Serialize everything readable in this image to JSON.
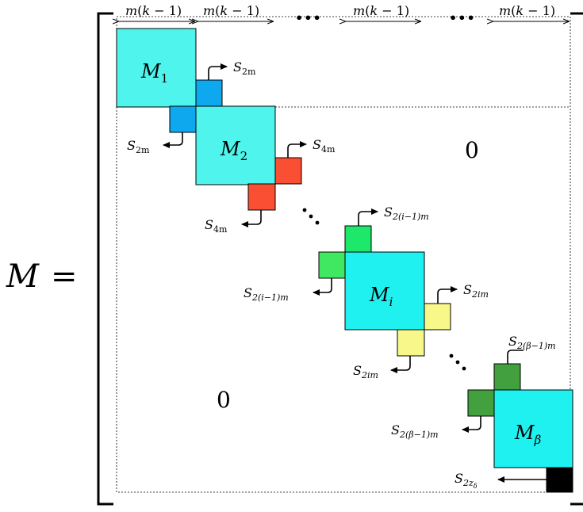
{
  "equation": {
    "lhs": "M",
    "equals": "="
  },
  "column_widths": [
    {
      "m": "m",
      "k": "k",
      "one": "1"
    },
    {
      "m": "m",
      "k": "k",
      "one": "1"
    },
    {
      "m": "m",
      "k": "k",
      "one": "1"
    },
    {
      "m": "m",
      "k": "k",
      "one": "1"
    }
  ],
  "ellipsis": "•••",
  "zeros": {
    "upper": "0",
    "lower": "0"
  },
  "blocks": [
    {
      "base": "M",
      "sub": "1"
    },
    {
      "base": "M",
      "sub": "2"
    },
    {
      "base": "M",
      "sub": "i"
    },
    {
      "base": "M",
      "sub": "β"
    }
  ],
  "separators": {
    "s2m": {
      "base": "S",
      "sub": "2m"
    },
    "s4m": {
      "base": "S",
      "sub": "4m"
    },
    "s2i1": {
      "base": "S",
      "sub": "2(i−1)m"
    },
    "s2im": {
      "base": "S",
      "sub": "2im"
    },
    "s2b1": {
      "base": "S",
      "sub": "2(β−1)m"
    },
    "s2z": {
      "base": "S",
      "sub": "2z",
      "subsub": "δ"
    }
  },
  "colors": {
    "block": "#4ff5ec",
    "block_beta": "#1ff0f0",
    "s2m": "#0ea8ee",
    "s4m": "#fa4f32",
    "s2i1": "#3fe860",
    "s2i1_top": "#1ee86a",
    "s2im": "#f7f78a",
    "s2b1": "#43a03f",
    "s2z": "#000000"
  }
}
